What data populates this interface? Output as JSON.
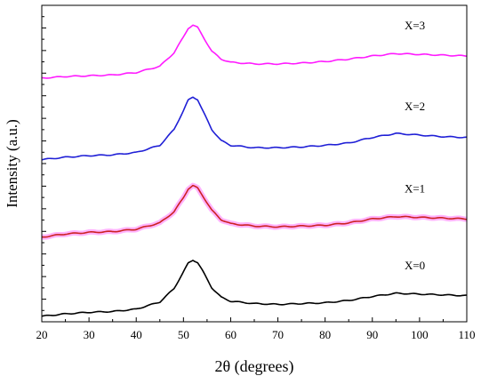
{
  "chart_data": {
    "type": "line",
    "title": "",
    "xlabel": "2θ (degrees)",
    "ylabel": "Intensity (a.u.)",
    "xlim": [
      20,
      110
    ],
    "xticks": [
      "20",
      "30",
      "40",
      "50",
      "60",
      "70",
      "80",
      "90",
      "100",
      "110"
    ],
    "yticks_labeled": false,
    "grid": false,
    "legend": "none",
    "series": [
      {
        "name": "X=0",
        "color": "#000000",
        "x": [
          20,
          25,
          30,
          35,
          40,
          45,
          48,
          50,
          51,
          52,
          53,
          54,
          56,
          58,
          60,
          65,
          70,
          75,
          80,
          85,
          90,
          95,
          100,
          105,
          110
        ],
        "y": [
          0.02,
          0.05,
          0.07,
          0.08,
          0.11,
          0.2,
          0.37,
          0.58,
          0.69,
          0.73,
          0.7,
          0.6,
          0.38,
          0.26,
          0.21,
          0.18,
          0.17,
          0.18,
          0.19,
          0.22,
          0.27,
          0.31,
          0.3,
          0.29,
          0.28
        ]
      },
      {
        "name": "X=1",
        "color": "#cc2222",
        "x": [
          20,
          25,
          30,
          35,
          40,
          45,
          48,
          50,
          51,
          52,
          53,
          54,
          56,
          58,
          60,
          65,
          70,
          75,
          80,
          85,
          90,
          95,
          100,
          105,
          110
        ],
        "y": [
          1.02,
          1.06,
          1.08,
          1.09,
          1.12,
          1.2,
          1.34,
          1.52,
          1.63,
          1.67,
          1.64,
          1.55,
          1.36,
          1.24,
          1.19,
          1.16,
          1.15,
          1.16,
          1.17,
          1.2,
          1.25,
          1.28,
          1.27,
          1.26,
          1.25
        ]
      },
      {
        "name": "X=2",
        "color": "#1f1fd6",
        "x": [
          20,
          25,
          30,
          35,
          40,
          45,
          48,
          50,
          51,
          52,
          53,
          54,
          56,
          58,
          60,
          65,
          70,
          75,
          80,
          85,
          90,
          95,
          100,
          105,
          110
        ],
        "y": [
          2.0,
          2.03,
          2.05,
          2.06,
          2.09,
          2.18,
          2.38,
          2.62,
          2.75,
          2.79,
          2.76,
          2.63,
          2.38,
          2.24,
          2.18,
          2.15,
          2.15,
          2.16,
          2.18,
          2.21,
          2.28,
          2.33,
          2.31,
          2.29,
          2.28
        ]
      },
      {
        "name": "X=3",
        "color": "#ff1aff",
        "x": [
          20,
          25,
          30,
          35,
          40,
          45,
          48,
          50,
          51,
          52,
          53,
          54,
          56,
          58,
          60,
          65,
          70,
          75,
          80,
          85,
          90,
          95,
          100,
          105,
          110
        ],
        "y": [
          3.03,
          3.05,
          3.06,
          3.07,
          3.1,
          3.18,
          3.35,
          3.55,
          3.66,
          3.7,
          3.67,
          3.57,
          3.37,
          3.27,
          3.23,
          3.21,
          3.21,
          3.22,
          3.24,
          3.27,
          3.31,
          3.34,
          3.33,
          3.32,
          3.31
        ]
      }
    ],
    "pink_band_on": "X=1",
    "pink_band_color": "#ffb3ff"
  }
}
